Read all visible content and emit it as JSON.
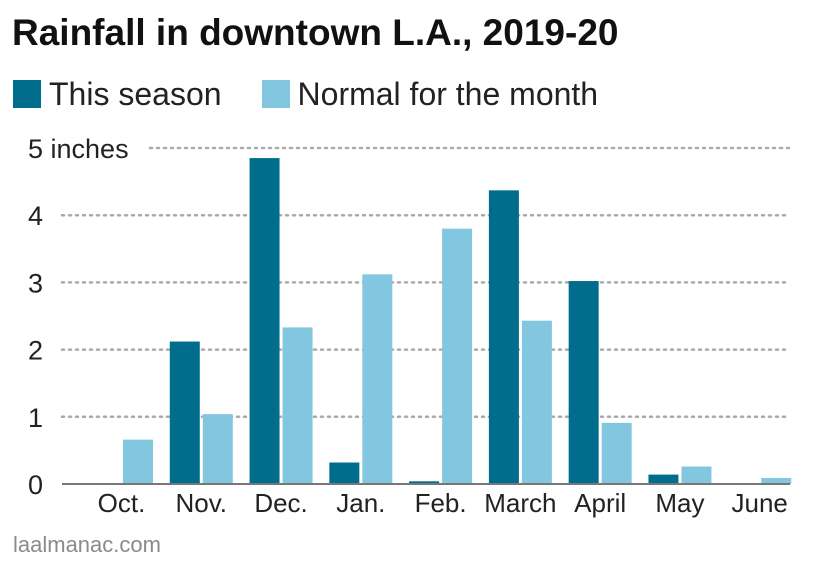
{
  "colors": {
    "this_season": "#006d8c",
    "normal": "#82c6df",
    "grid": "#aaaaaa",
    "axis": "#777777",
    "text": "#222222"
  },
  "chart_data": {
    "type": "bar",
    "title": "Rainfall in downtown L.A., 2019-20",
    "categories": [
      "Oct.",
      "Nov.",
      "Dec.",
      "Jan.",
      "Feb.",
      "March",
      "April",
      "May",
      "June"
    ],
    "series": [
      {
        "name": "This season",
        "values": [
          0,
          2.12,
          4.85,
          0.32,
          0.04,
          4.37,
          3.02,
          0.14,
          0
        ]
      },
      {
        "name": "Normal for the month",
        "values": [
          0.66,
          1.04,
          2.33,
          3.12,
          3.8,
          2.43,
          0.91,
          0.26,
          0.09
        ]
      }
    ],
    "ylim": [
      0,
      5
    ],
    "yticks": [
      {
        "value": 0,
        "label": "0"
      },
      {
        "value": 1,
        "label": "1"
      },
      {
        "value": 2,
        "label": "2"
      },
      {
        "value": 3,
        "label": "3"
      },
      {
        "value": 4,
        "label": "4"
      },
      {
        "value": 5,
        "label": "5 inches"
      }
    ],
    "grid": true,
    "legend": "top-left"
  },
  "source": "laalmanac.com"
}
